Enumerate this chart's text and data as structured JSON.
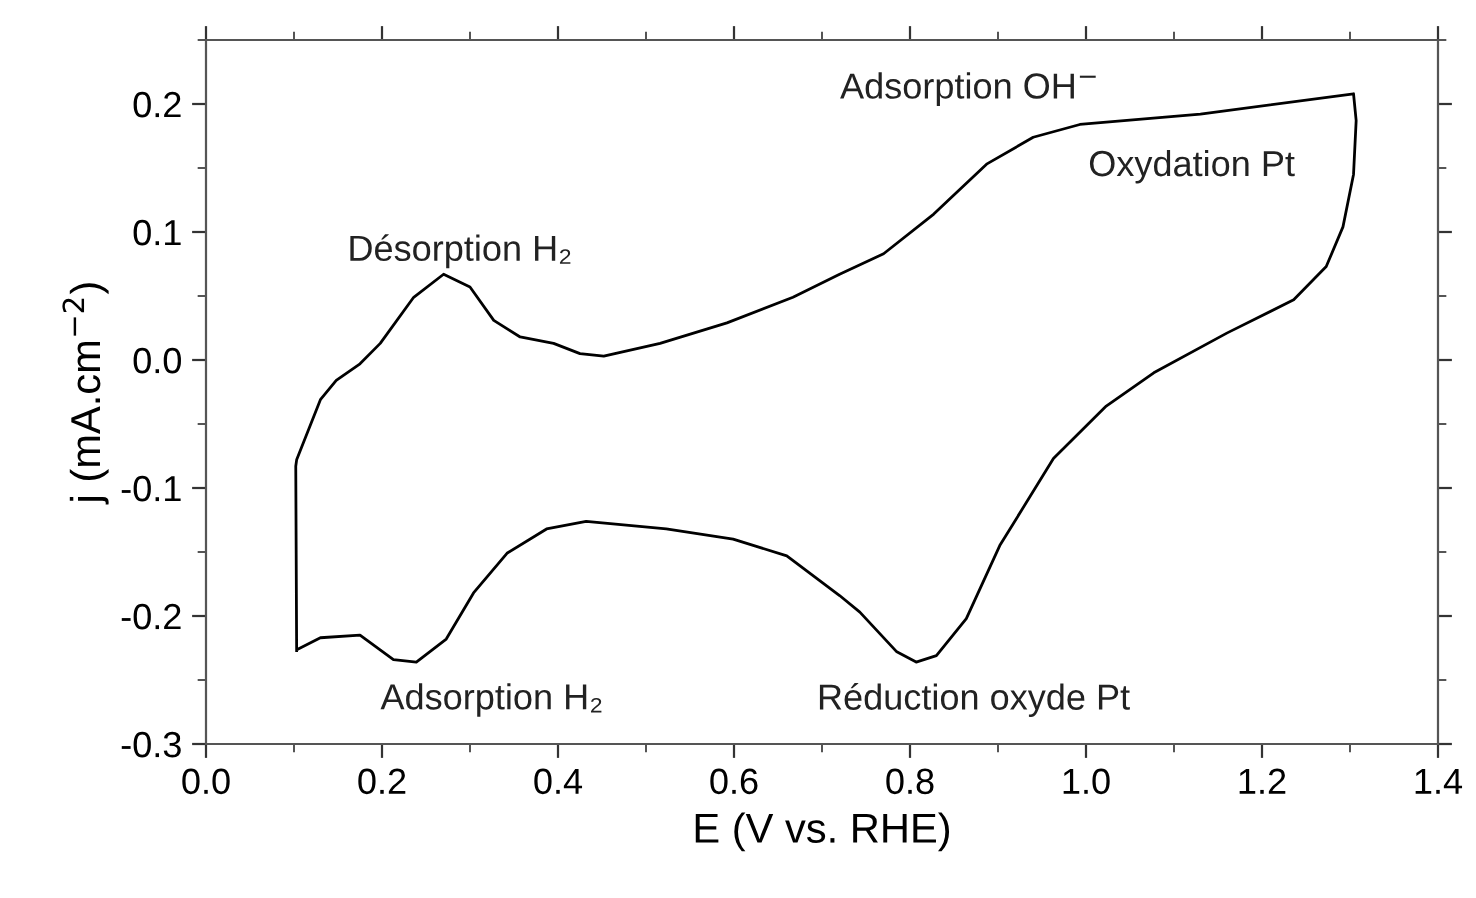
{
  "chart_data": {
    "type": "line",
    "xlabel": "E (V vs. RHE)",
    "ylabel": "j (mA.cm$^{−2}$)",
    "xlim": [
      0.0,
      1.4
    ],
    "xticks": [
      {
        "value": 0.0,
        "label": "0.0"
      },
      0.2,
      0.4,
      0.6,
      0.8,
      {
        "value": 1.0,
        "label": "1.0"
      },
      1.2,
      1.4
    ],
    "ylim": [
      -0.3,
      0.25
    ],
    "yticks": [
      -0.3,
      -0.2,
      -0.1,
      {
        "value": 0.0,
        "label": "0.0"
      },
      0.1,
      0.2
    ],
    "grid": false,
    "legend": false,
    "marker": "none",
    "line_style": "solid",
    "series": [
      {
        "color": "#000000",
        "x": [
          0.103,
          0.102,
          0.103,
          0.13,
          0.148,
          0.175,
          0.198,
          0.236,
          0.27,
          0.3,
          0.327,
          0.357,
          0.395,
          0.425,
          0.452,
          0.516,
          0.592,
          0.667,
          0.72,
          0.77,
          0.827,
          0.887,
          0.94,
          0.993,
          1.13,
          1.304,
          1.307,
          1.304,
          1.292,
          1.273,
          1.236,
          1.16,
          1.077,
          1.023,
          0.963,
          0.902,
          0.864,
          0.83,
          0.807,
          0.785,
          0.743,
          0.72,
          0.66,
          0.599,
          0.523,
          0.432,
          0.387,
          0.342,
          0.304,
          0.273,
          0.239,
          0.213,
          0.175,
          0.13,
          0.104
        ],
        "values": [
          -0.227,
          -0.083,
          -0.078,
          -0.031,
          -0.016,
          -0.003,
          0.013,
          0.049,
          0.067,
          0.057,
          0.031,
          0.018,
          0.013,
          0.005,
          0.003,
          0.013,
          0.029,
          0.049,
          0.067,
          0.083,
          0.114,
          0.153,
          0.174,
          0.184,
          0.192,
          0.208,
          0.187,
          0.145,
          0.104,
          0.073,
          0.047,
          0.021,
          -0.01,
          -0.036,
          -0.077,
          -0.145,
          -0.202,
          -0.231,
          -0.236,
          -0.228,
          -0.197,
          -0.184,
          -0.153,
          -0.14,
          -0.132,
          -0.126,
          -0.132,
          -0.151,
          -0.182,
          -0.218,
          -0.236,
          -0.234,
          -0.215,
          -0.217,
          -0.226
        ]
      }
    ],
    "annotations": [
      "Désorption H₂",
      "Adsorption OH$^{−}$",
      "Oxydation Pt",
      "Adsorption H₂",
      "Réduction oxyde Pt"
    ]
  }
}
